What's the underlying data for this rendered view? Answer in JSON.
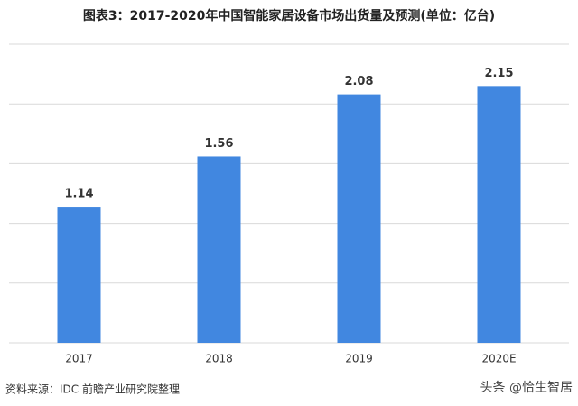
{
  "chart_data": {
    "type": "bar",
    "title": "图表3：2017-2020年中国智能家居设备市场出货量及预测(单位：亿台)",
    "categories": [
      "2017",
      "2018",
      "2019",
      "2020E"
    ],
    "values": [
      1.14,
      1.56,
      2.08,
      2.15
    ],
    "color": "#4187e0",
    "ylim": [
      0,
      2.5
    ],
    "yticks": [
      0,
      0.5,
      1,
      1.5,
      2,
      2.5
    ],
    "grid": true,
    "source": "资料来源：IDC 前瞻产业研究院整理",
    "watermark": "头条 @恰生智居"
  }
}
